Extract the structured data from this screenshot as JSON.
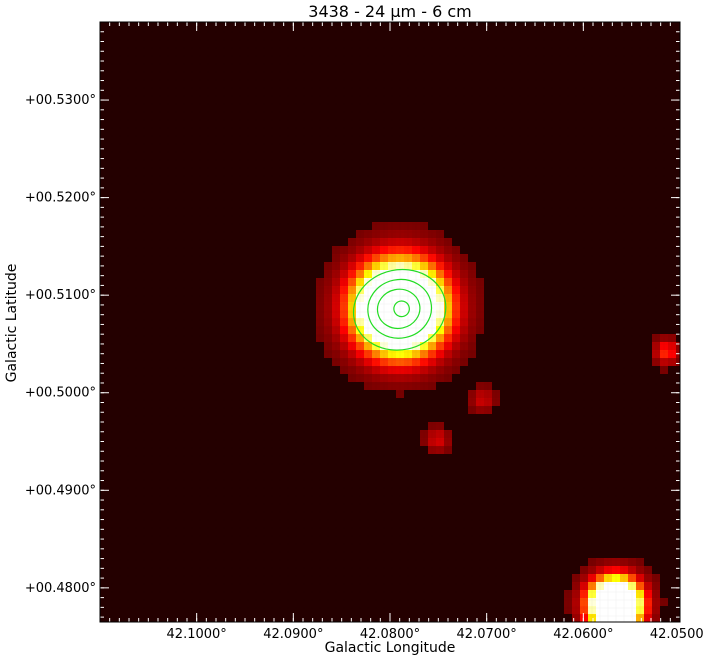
{
  "title": "3438 - 24 µm - 6 cm",
  "axes": {
    "xlabel": "Galactic Longitude",
    "ylabel": "Galactic Latitude",
    "x_ticks": [
      "42.1000°",
      "42.0900°",
      "42.0800°",
      "42.0700°",
      "42.0600°",
      "42.0500°"
    ],
    "x_values": [
      42.1,
      42.09,
      42.08,
      42.07,
      42.06,
      42.05
    ],
    "y_ticks": [
      "+00.5300°",
      "+00.5200°",
      "+00.5100°",
      "+00.5000°",
      "+00.4900°",
      "+00.4800°"
    ],
    "y_values": [
      0.53,
      0.52,
      0.51,
      0.5,
      0.49,
      0.48
    ],
    "x_range": [
      42.11,
      42.05
    ],
    "y_range": [
      0.4765,
      0.538
    ]
  },
  "colors": {
    "background": "#240000",
    "colormap": "hot",
    "contour": "#22dd22",
    "frame": "#000000"
  },
  "sources": [
    {
      "l": 42.079,
      "b": 0.5087,
      "peak": 1.0,
      "sigma_deg": 0.0028,
      "saturated": true
    },
    {
      "l": 42.0567,
      "b": 0.4783,
      "peak": 1.0,
      "sigma_deg": 0.0016,
      "saturated": true
    },
    {
      "l": 42.0514,
      "b": 0.5042,
      "peak": 0.35,
      "sigma_deg": 0.0008
    },
    {
      "l": 42.0704,
      "b": 0.4993,
      "peak": 0.18,
      "sigma_deg": 0.0008
    },
    {
      "l": 42.0751,
      "b": 0.4952,
      "peak": 0.2,
      "sigma_deg": 0.0008
    }
  ],
  "contour_levels_note": "",
  "contours": [
    {
      "l": 42.079,
      "b": 0.5085,
      "rl": 0.0048,
      "rb": 0.0041
    },
    {
      "l": 42.079,
      "b": 0.5086,
      "rl": 0.0033,
      "rb": 0.003
    },
    {
      "l": 42.0791,
      "b": 0.5086,
      "rl": 0.0022,
      "rb": 0.002
    },
    {
      "l": 42.0788,
      "b": 0.5086,
      "rl": 0.0008,
      "rb": 0.0008
    }
  ]
}
